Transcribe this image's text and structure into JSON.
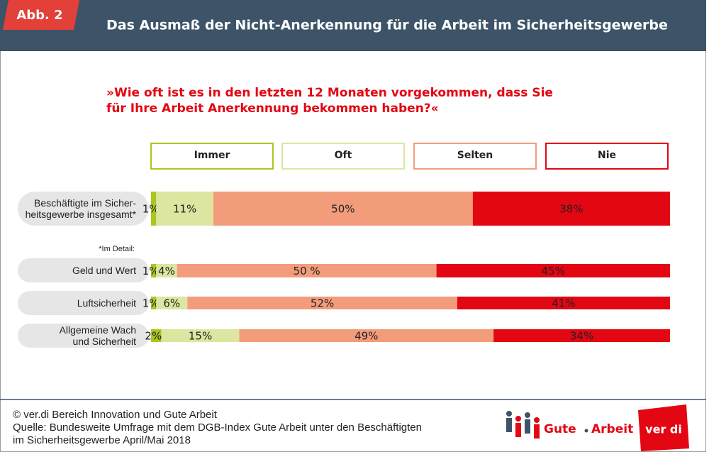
{
  "chart_data": {
    "type": "stacked_bar",
    "badge": "Abb. 2",
    "title": "Das Ausmaß der Nicht-Anerkennung für die Arbeit im Sicherheitsgewerbe",
    "subtitle": "»Wie oft ist es in den letzten 12 Monaten vorgekommen, dass Sie\nfür Ihre Arbeit Anerkennung bekommen haben?«",
    "note": "*Im Detail:",
    "categories": [
      "Beschäftigte im Sicher-\nheitsgewerbe insgesamt*",
      "Geld und Wert",
      "Luftsicherheit",
      "Allgemeine Wach\nund Sicherheit"
    ],
    "xlim": [
      0,
      100
    ],
    "series": [
      {
        "name": "Immer",
        "color": "#a8c81e",
        "values": [
          1,
          1,
          1,
          2
        ],
        "value_labels": [
          "1%",
          "1%",
          "1%",
          "2%"
        ]
      },
      {
        "name": "Oft",
        "color": "#dce6a0",
        "values": [
          11,
          4,
          6,
          15
        ],
        "value_labels": [
          "11%",
          "4%",
          "6%",
          "15%"
        ]
      },
      {
        "name": "Selten",
        "color": "#f39c7c",
        "values": [
          50,
          50,
          52,
          49
        ],
        "value_labels": [
          "50%",
          "50 %",
          "52%",
          "49%"
        ]
      },
      {
        "name": "Nie",
        "color": "#e30613",
        "values": [
          38,
          45,
          41,
          34
        ],
        "value_labels": [
          "38%",
          "45%",
          "41%",
          "34%"
        ]
      }
    ],
    "source": [
      "© ver.di Bereich Innovation und Gute Arbeit",
      "Quelle: Bundesweite Umfrage mit dem DGB-Index Gute Arbeit unter den Beschäftigten",
      "im Sicherheitsgewerbe April/Mai 2018"
    ],
    "logo_text": [
      "Gute",
      "Arbeit",
      "ver di"
    ]
  }
}
